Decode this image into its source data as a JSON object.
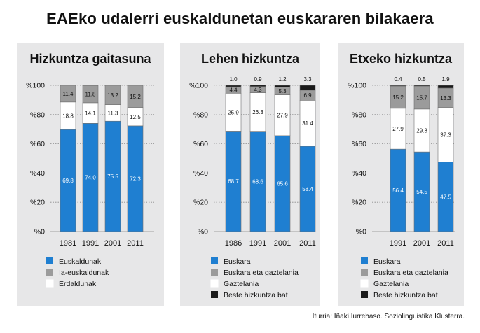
{
  "title": "EAEko udalerri euskaldunetan euskararen bilakaera",
  "source": "Iturria: Iñaki Iurrebaso. Soziolinguistika Klusterra.",
  "colors": {
    "blue": "#1f7fd1",
    "gray": "#9b9b9b",
    "white": "#ffffff",
    "black": "#1a1a1a",
    "panel": "#e7e7e8"
  },
  "chart_data": [
    {
      "type": "bar",
      "stacked": true,
      "title": "Hizkuntza gaitasuna",
      "categories": [
        "1981",
        "1991",
        "2001",
        "2011"
      ],
      "yticks": [
        "%0",
        "%20",
        "%40",
        "%60",
        "%80",
        "%100"
      ],
      "ylim": [
        0,
        100
      ],
      "series": [
        {
          "name": "Euskaldunak",
          "color": "#1f7fd1",
          "values": [
            69.8,
            74.0,
            75.5,
            72.3
          ],
          "labels": [
            "69.8",
            "74.0",
            "75.5",
            "72.3"
          ]
        },
        {
          "name": "Erdaldunak",
          "color": "#ffffff",
          "values": [
            18.8,
            14.1,
            11.3,
            12.5
          ],
          "labels": [
            "18.8",
            "14.1",
            "11.3",
            "12.5"
          ]
        },
        {
          "name": "Ia-euskaldunak",
          "color": "#9b9b9b",
          "values": [
            11.4,
            11.8,
            13.2,
            15.2
          ],
          "labels": [
            "11.4",
            "11.8",
            "13.2",
            "15.2"
          ]
        }
      ],
      "legend": [
        {
          "name": "Euskaldunak",
          "color": "#1f7fd1"
        },
        {
          "name": "Ia-euskaldunak",
          "color": "#9b9b9b"
        },
        {
          "name": "Erdaldunak",
          "color": "#ffffff"
        }
      ]
    },
    {
      "type": "bar",
      "stacked": true,
      "title": "Lehen hizkuntza",
      "categories": [
        "1986",
        "1991",
        "2001",
        "2011"
      ],
      "yticks": [
        "%0",
        "%20",
        "%40",
        "%60",
        "%80",
        "%100"
      ],
      "ylim": [
        0,
        100
      ],
      "series": [
        {
          "name": "Euskara",
          "color": "#1f7fd1",
          "values": [
            68.7,
            68.6,
            65.6,
            58.4
          ],
          "labels": [
            "68.7",
            "68.6",
            "65.6",
            "58.4"
          ]
        },
        {
          "name": "Gaztelania",
          "color": "#ffffff",
          "values": [
            25.9,
            26.3,
            27.9,
            31.4
          ],
          "labels": [
            "25.9",
            "26.3",
            "27.9",
            "31.4"
          ]
        },
        {
          "name": "Euskara eta gaztelania",
          "color": "#9b9b9b",
          "values": [
            4.4,
            4.3,
            5.3,
            6.9
          ],
          "labels": [
            "4.4",
            "4.3",
            "5.3",
            "6.9"
          ]
        },
        {
          "name": "Beste hizkuntza bat",
          "color": "#1a1a1a",
          "values": [
            1.0,
            0.9,
            1.2,
            3.3
          ],
          "labels": [
            "1.0",
            "0.9",
            "1.2",
            "3.3"
          ],
          "label_above": true
        }
      ],
      "legend": [
        {
          "name": "Euskara",
          "color": "#1f7fd1"
        },
        {
          "name": "Euskara eta gaztelania",
          "color": "#9b9b9b"
        },
        {
          "name": "Gaztelania",
          "color": "#ffffff"
        },
        {
          "name": "Beste hizkuntza bat",
          "color": "#1a1a1a"
        }
      ]
    },
    {
      "type": "bar",
      "stacked": true,
      "title": "Etxeko hizkuntza",
      "categories": [
        "1991",
        "2001",
        "2011"
      ],
      "yticks": [
        "%0",
        "%20",
        "%40",
        "%60",
        "%80",
        "%100"
      ],
      "ylim": [
        0,
        100
      ],
      "series": [
        {
          "name": "Euskara",
          "color": "#1f7fd1",
          "values": [
            56.4,
            54.5,
            47.5
          ],
          "labels": [
            "56.4",
            "54.5",
            "47.5"
          ]
        },
        {
          "name": "Gaztelania",
          "color": "#ffffff",
          "values": [
            27.9,
            29.3,
            37.3
          ],
          "labels": [
            "27.9",
            "29.3",
            "37.3"
          ]
        },
        {
          "name": "Euskara eta gaztelania",
          "color": "#9b9b9b",
          "values": [
            15.2,
            15.7,
            13.3
          ],
          "labels": [
            "15.2",
            "15.7",
            "13.3"
          ]
        },
        {
          "name": "Beste hizkuntza bat",
          "color": "#1a1a1a",
          "values": [
            0.4,
            0.5,
            1.9
          ],
          "labels": [
            "0.4",
            "0.5",
            "1.9"
          ],
          "label_above": true
        }
      ],
      "legend": [
        {
          "name": "Euskara",
          "color": "#1f7fd1"
        },
        {
          "name": "Euskara eta gaztelania",
          "color": "#9b9b9b"
        },
        {
          "name": "Gaztelania",
          "color": "#ffffff"
        },
        {
          "name": "Beste hizkuntza bat",
          "color": "#1a1a1a"
        }
      ]
    }
  ]
}
